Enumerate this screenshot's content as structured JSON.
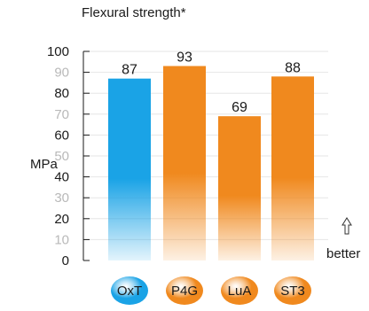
{
  "chart_data": {
    "type": "bar",
    "title": "Flexural strength*",
    "ylabel": "MPa",
    "ylim": [
      0,
      100
    ],
    "yticks": [
      0,
      10,
      20,
      30,
      40,
      50,
      60,
      70,
      80,
      90,
      100
    ],
    "light_ticks": [
      10,
      30,
      50,
      70,
      90
    ],
    "categories": [
      "OxT",
      "P4G",
      "LuA",
      "ST3"
    ],
    "values": [
      87,
      93,
      69,
      88
    ],
    "value_labels": [
      "87",
      "93",
      "69",
      "88"
    ],
    "annotation": "better",
    "grid": true,
    "colors": {
      "OxT": "#1aa3e6",
      "P4G": "#f0891e",
      "LuA": "#f0891e",
      "ST3": "#f0891e"
    }
  }
}
